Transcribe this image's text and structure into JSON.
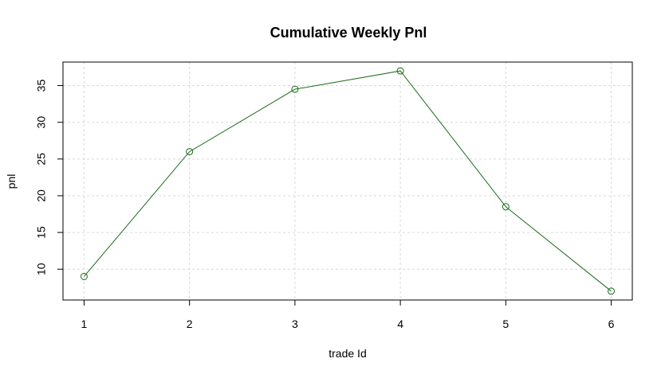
{
  "chart_data": {
    "type": "line",
    "title": "Cumulative Weekly Pnl",
    "xlabel": "trade Id",
    "ylabel": "pnl",
    "x": [
      1,
      2,
      3,
      4,
      5,
      6
    ],
    "series": [
      {
        "values": [
          9,
          26,
          34.5,
          37,
          18.5,
          7
        ],
        "color": "#1a6b1a",
        "marker": "open-circle"
      }
    ],
    "xlim": [
      0.8,
      6.2
    ],
    "ylim": [
      5.8,
      38.2
    ],
    "xticks": [
      1,
      2,
      3,
      4,
      5,
      6
    ],
    "yticks": [
      10,
      15,
      20,
      25,
      30,
      35
    ],
    "grid": true
  }
}
